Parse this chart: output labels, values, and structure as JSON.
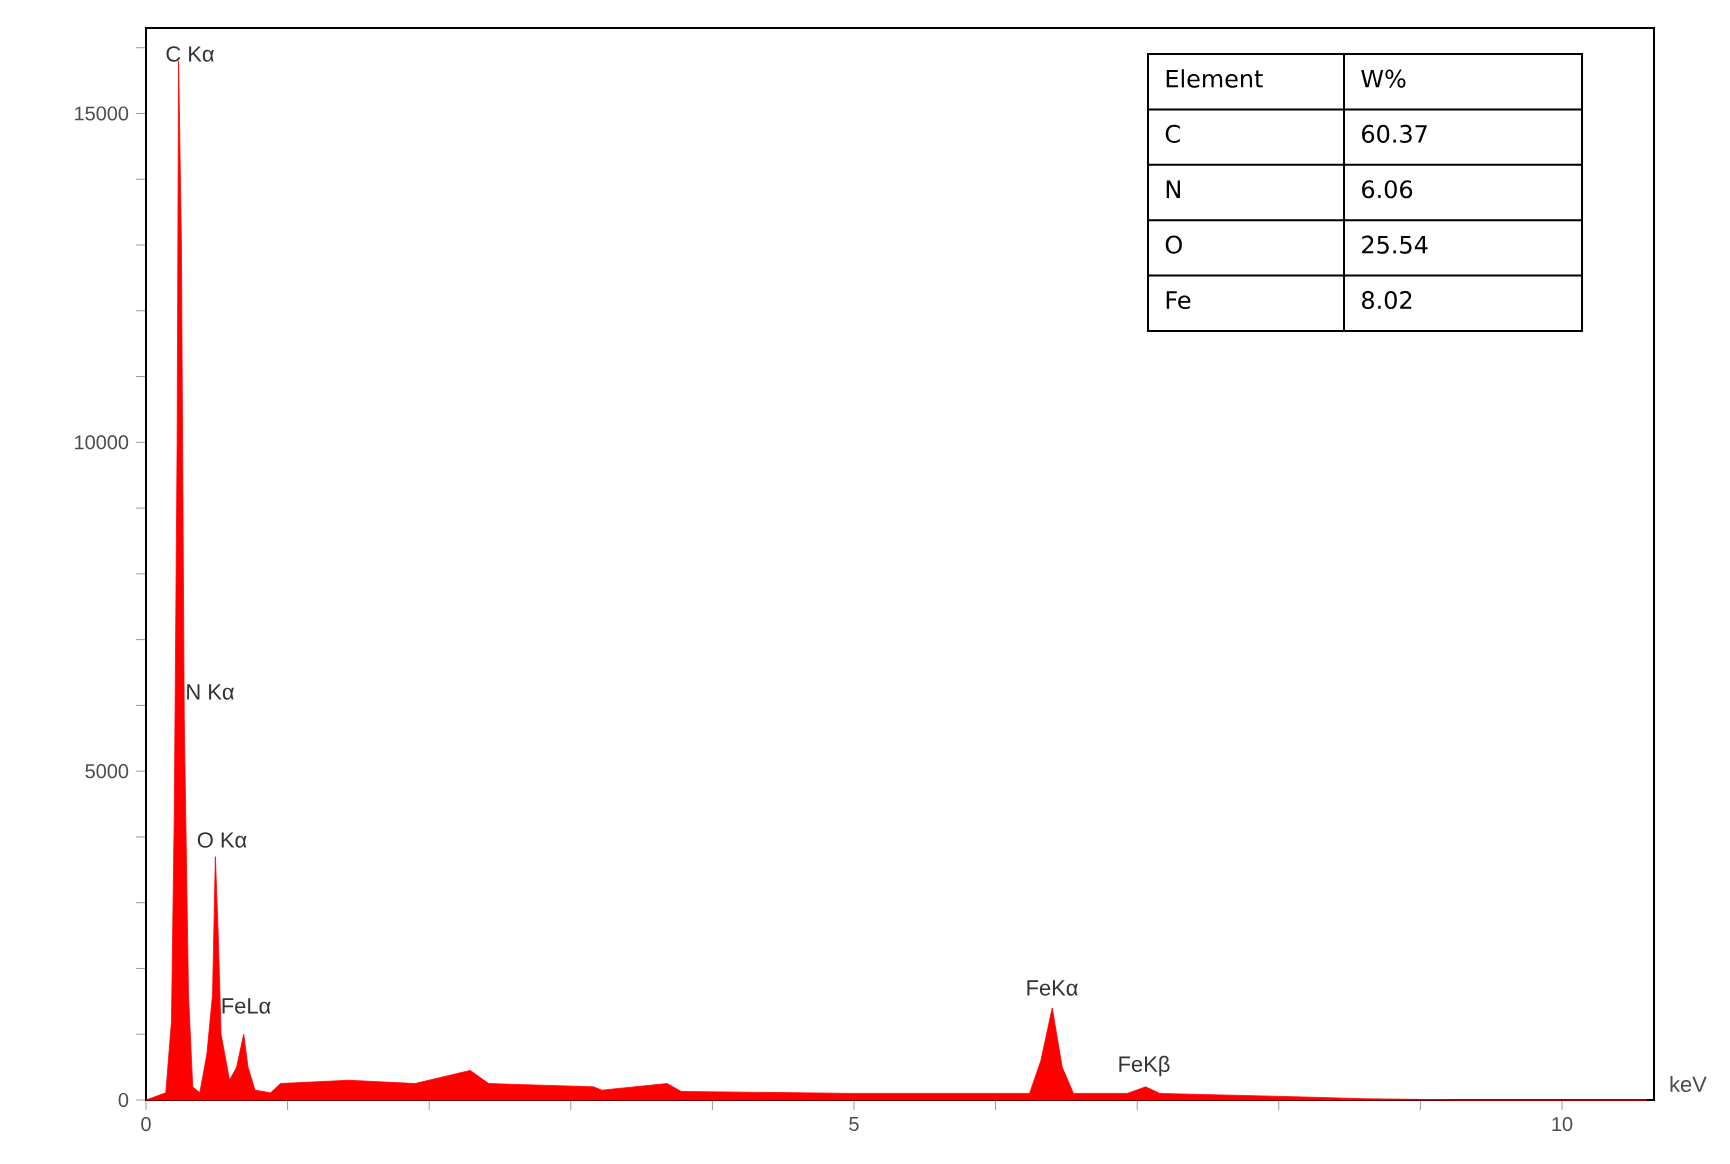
{
  "chart_data": {
    "type": "area",
    "xlabel": "keV",
    "color": "#ff0000",
    "x": [
      0,
      0.14,
      0.18,
      0.2,
      0.22,
      0.23,
      0.25,
      0.27,
      0.3,
      0.33,
      0.38,
      0.43,
      0.47,
      0.49,
      0.51,
      0.53,
      0.59,
      0.64,
      0.69,
      0.72,
      0.77,
      0.88,
      0.95,
      1.43,
      1.9,
      2.29,
      2.42,
      3.16,
      3.22,
      3.68,
      3.78,
      5.0,
      6.24,
      6.32,
      6.4,
      6.47,
      6.55,
      6.93,
      7.06,
      7.16,
      8.1,
      8.6,
      9.31,
      10.6
    ],
    "values": [
      0,
      110,
      1200,
      4400,
      10000,
      15800,
      13000,
      5800,
      1600,
      200,
      110,
      700,
      1600,
      3700,
      2500,
      1000,
      300,
      500,
      1000,
      500,
      150,
      110,
      250,
      300,
      250,
      450,
      250,
      200,
      150,
      250,
      130,
      100,
      100,
      600,
      1400,
      500,
      100,
      100,
      200,
      100,
      50,
      20,
      0,
      0
    ],
    "xlim": [
      0,
      10.65
    ],
    "ylim": [
      0,
      16300
    ],
    "xticks": [
      0,
      {
        "value": 1,
        "label": null
      },
      {
        "value": 2,
        "label": null
      },
      {
        "value": 3,
        "label": null
      },
      {
        "value": 4,
        "label": null
      },
      5,
      {
        "value": 6,
        "label": null
      },
      {
        "value": 7,
        "label": null
      },
      {
        "value": 8,
        "label": null
      },
      {
        "value": 9,
        "label": null
      },
      10
    ],
    "yticks": [
      0,
      {
        "value": 1000,
        "label": null
      },
      {
        "value": 2000,
        "label": null
      },
      {
        "value": 3000,
        "label": null
      },
      {
        "value": 4000,
        "label": null
      },
      5000,
      {
        "value": 6000,
        "label": null
      },
      {
        "value": 7000,
        "label": null
      },
      {
        "value": 8000,
        "label": null
      },
      {
        "value": 9000,
        "label": null
      },
      10000,
      {
        "value": 11000,
        "label": null
      },
      {
        "value": 12000,
        "label": null
      },
      {
        "value": 13000,
        "label": null
      },
      {
        "value": 14000,
        "label": null
      },
      15000,
      {
        "value": 16000,
        "label": null
      }
    ],
    "annotations": [
      "C Kα",
      "N Kα",
      "O Kα",
      "FeLα",
      "FeKα",
      "FeKβ",
      "Element",
      "W%",
      "C",
      "60.37",
      "N",
      "6.06",
      "O",
      "25.54",
      "Fe",
      "8.02"
    ]
  }
}
